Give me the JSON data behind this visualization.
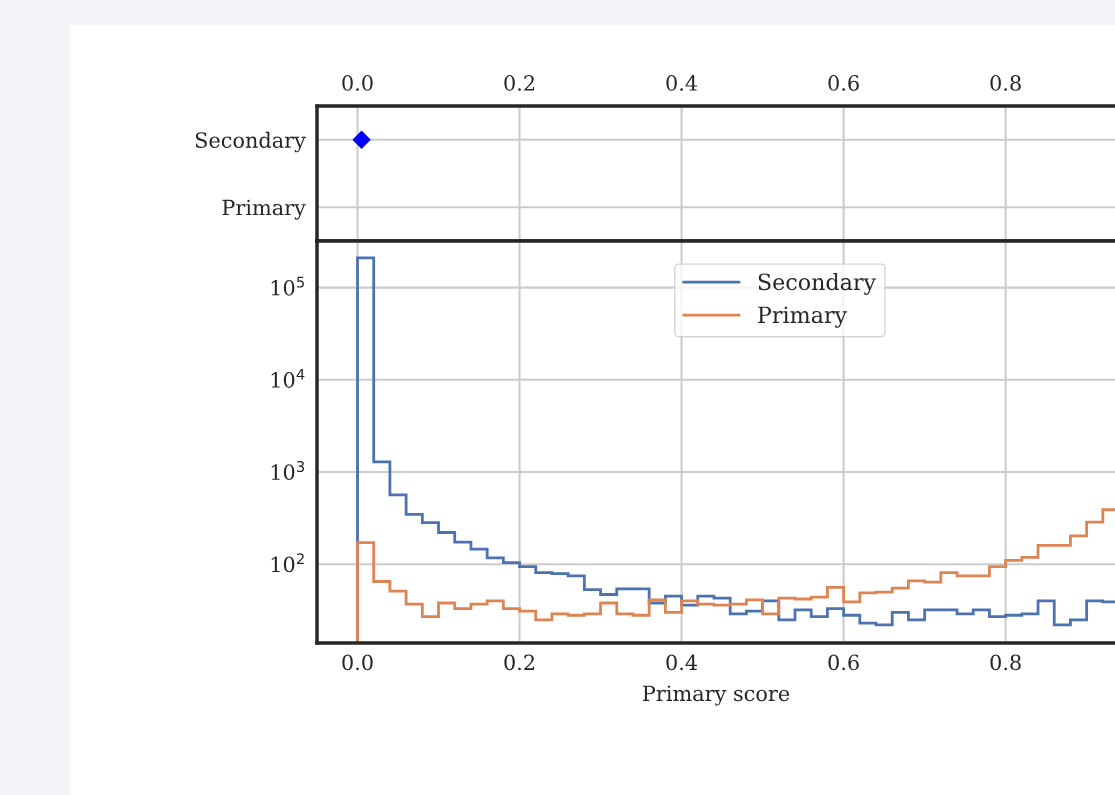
{
  "chart_data": [
    {
      "type": "scatter",
      "orientation": "horizontal",
      "categories": [
        "Secondary",
        "Primary"
      ],
      "xlim": [
        -0.05,
        0.935
      ],
      "xticks": [
        {
          "value": 0,
          "label": "0.0"
        },
        {
          "value": 0.2,
          "label": "0.2"
        },
        {
          "value": 0.4,
          "label": "0.4"
        },
        {
          "value": 0.6,
          "label": "0.6"
        },
        {
          "value": 0.8,
          "label": "0.8"
        }
      ],
      "grid": true,
      "marker": "diamond",
      "series": [
        {
          "color": "#0000ff",
          "values": [
            0.005,
            null
          ]
        }
      ]
    },
    {
      "type": "histogram",
      "bins": [
        0,
        0.02,
        0.04,
        0.06,
        0.08,
        0.1,
        0.12,
        0.14,
        0.16,
        0.18,
        0.2,
        0.22,
        0.24,
        0.26,
        0.28,
        0.3,
        0.32,
        0.34,
        0.36,
        0.38,
        0.4,
        0.42,
        0.44,
        0.46,
        0.48,
        0.5,
        0.52,
        0.54,
        0.56,
        0.58,
        0.6,
        0.62,
        0.64,
        0.66,
        0.68,
        0.7,
        0.72,
        0.74,
        0.76,
        0.78,
        0.8,
        0.82,
        0.84,
        0.86,
        0.88,
        0.9,
        0.92,
        0.94
      ],
      "xlabel": "Primary score",
      "xlim": [
        -0.05,
        0.935
      ],
      "xticks": [
        {
          "value": 0,
          "label": "0.0"
        },
        {
          "value": 0.2,
          "label": "0.2"
        },
        {
          "value": 0.4,
          "label": "0.4"
        },
        {
          "value": 0.6,
          "label": "0.6"
        },
        {
          "value": 0.8,
          "label": "0.8"
        }
      ],
      "log": "y",
      "ylim": [
        14,
        320000
      ],
      "yticks": [
        {
          "value": 100,
          "label": "10$^{2}$"
        },
        {
          "value": 1000,
          "label": "10$^{3}$"
        },
        {
          "value": 10000,
          "label": "10$^{4}$"
        },
        {
          "value": 100000,
          "label": "10$^{5}$"
        }
      ],
      "grid": true,
      "legend": "top",
      "series": [
        {
          "name": "Secondary",
          "color": "#4c72b0",
          "values": [
            210000,
            1290,
            565,
            348,
            282,
            221,
            174,
            146,
            117,
            104,
            94,
            81,
            79,
            75,
            53,
            47,
            54,
            54,
            38,
            45,
            36,
            45,
            43,
            29,
            31,
            40,
            25,
            32,
            27,
            33,
            28,
            23,
            22,
            30,
            25,
            32,
            32,
            29,
            32,
            27,
            28,
            29,
            40,
            22,
            25,
            40,
            39
          ]
        },
        {
          "name": "Primary",
          "color": "#dd8452",
          "values": [
            172,
            65,
            51,
            37,
            27,
            38,
            33,
            37,
            40,
            33,
            31,
            25,
            29,
            28,
            29,
            38,
            29,
            28,
            41,
            30,
            40,
            37,
            36,
            37,
            41,
            29,
            43,
            42,
            44,
            56,
            39,
            49,
            50,
            55,
            66,
            64,
            81,
            75,
            75,
            94,
            110,
            119,
            160,
            160,
            203,
            286,
            390
          ]
        }
      ]
    }
  ]
}
